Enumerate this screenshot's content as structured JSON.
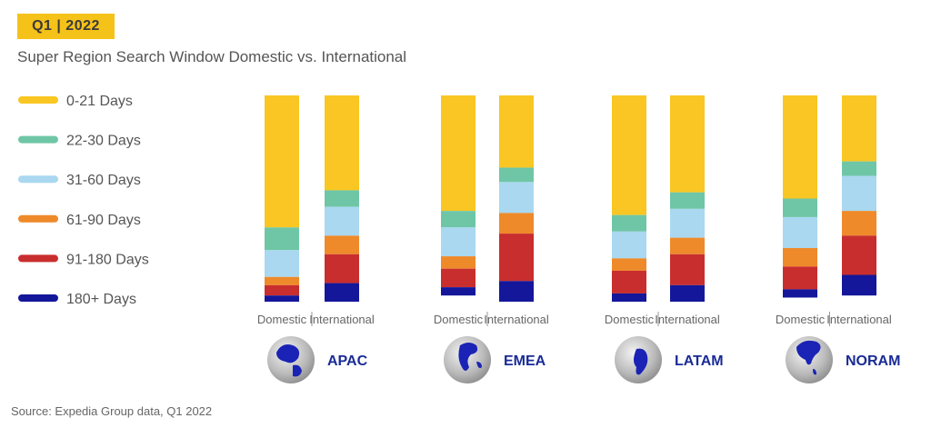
{
  "header": {
    "badge": "Q1 | 2022",
    "subtitle": "Super Region Search Window Domestic vs. International"
  },
  "footer": {
    "source": "Source: Expedia Group data, Q1 2022"
  },
  "chart_data": {
    "type": "bar",
    "stacked": true,
    "normalized": true,
    "title": "Super Region Search Window Domestic vs. International",
    "legend_position": "left",
    "grid": false,
    "ylim": [
      0,
      100
    ],
    "bar_labels": [
      "Domestic",
      "International"
    ],
    "groups": [
      "APAC",
      "EMEA",
      "LATAM",
      "NORAM"
    ],
    "categories": [
      "APAC Domestic",
      "APAC International",
      "EMEA Domestic",
      "EMEA International",
      "LATAM Domestic",
      "LATAM International",
      "NORAM Domestic",
      "NORAM International"
    ],
    "series": [
      {
        "name": "0-21 Days",
        "color": "#F9C623",
        "values": [
          64,
          46,
          56,
          35,
          58,
          47,
          50,
          32
        ]
      },
      {
        "name": "22-30 Days",
        "color": "#6FC6A6",
        "values": [
          11,
          8,
          8,
          7,
          8,
          8,
          9,
          7
        ]
      },
      {
        "name": "31-60 Days",
        "color": "#A9D8F0",
        "values": [
          13,
          14,
          14,
          15,
          13,
          14,
          15,
          17
        ]
      },
      {
        "name": "61-90 Days",
        "color": "#EE8A2A",
        "values": [
          4,
          9,
          6,
          10,
          6,
          8,
          9,
          12
        ]
      },
      {
        "name": "91-180 Days",
        "color": "#C92E2E",
        "values": [
          5,
          14,
          9,
          23,
          11,
          15,
          11,
          19
        ]
      },
      {
        "name": "180+ Days",
        "color": "#14179A",
        "values": [
          3,
          9,
          4,
          10,
          4,
          8,
          4,
          10
        ]
      }
    ]
  }
}
